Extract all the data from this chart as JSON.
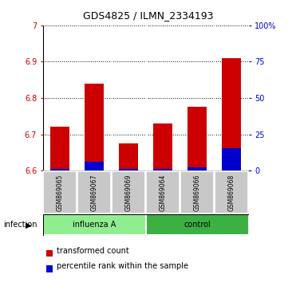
{
  "title": "GDS4825 / ILMN_2334193",
  "samples": [
    "GSM869065",
    "GSM869067",
    "GSM869069",
    "GSM869064",
    "GSM869066",
    "GSM869068"
  ],
  "groups": [
    "influenza A",
    "influenza A",
    "influenza A",
    "control",
    "control",
    "control"
  ],
  "group_color_flu": "#90EE90",
  "group_color_ctrl": "#3CB043",
  "red_values": [
    6.72,
    6.84,
    6.675,
    6.73,
    6.775,
    6.91
  ],
  "blue_values": [
    6.605,
    6.625,
    6.605,
    6.605,
    6.61,
    6.662
  ],
  "ylim_left": [
    6.6,
    7.0
  ],
  "ylim_right": [
    0,
    100
  ],
  "yticks_left": [
    6.6,
    6.7,
    6.8,
    6.9,
    7.0
  ],
  "ytick_labels_left": [
    "6.6",
    "6.7",
    "6.8",
    "6.9",
    "7"
  ],
  "yticks_right": [
    0,
    25,
    50,
    75,
    100
  ],
  "ytick_labels_right": [
    "0",
    "25",
    "50",
    "75",
    "100%"
  ],
  "left_axis_color": "#CC0000",
  "right_axis_color": "#0000CC",
  "bar_width": 0.55,
  "legend_red": "transformed count",
  "legend_blue": "percentile rank within the sample",
  "label_area_bg": "#c8c8c8"
}
